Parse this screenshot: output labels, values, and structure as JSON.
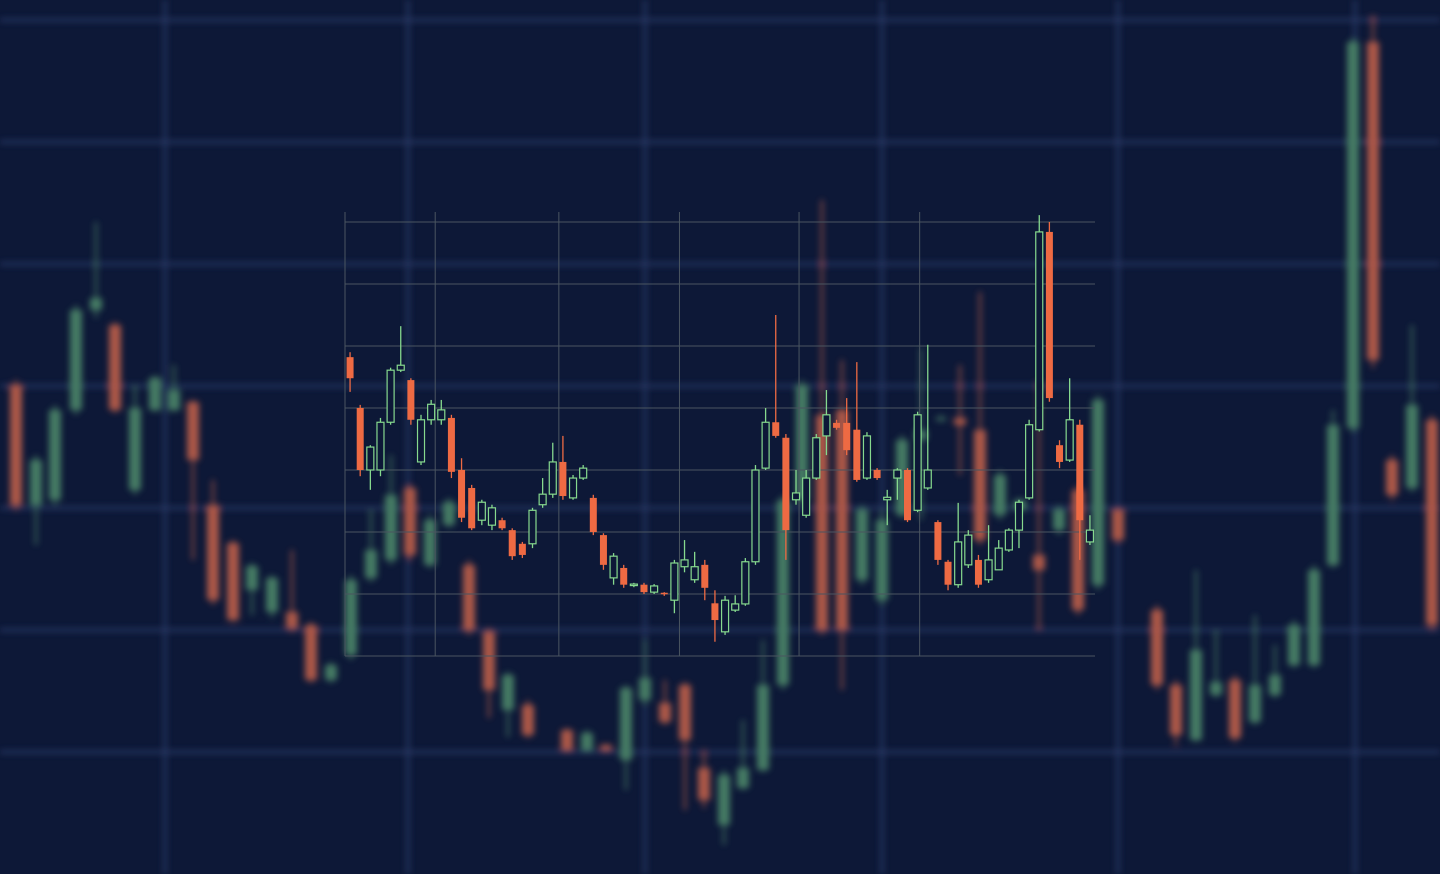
{
  "chart_data": [
    {
      "type": "candlestick",
      "x": [
        16,
        36,
        55,
        76,
        96,
        115,
        135,
        155,
        174,
        193,
        213,
        233,
        252,
        272,
        292,
        311,
        331,
        351,
        371,
        391,
        410,
        430,
        449,
        469,
        489,
        508,
        528,
        567,
        587,
        606,
        626,
        645,
        665,
        685,
        704,
        724,
        743,
        763,
        783,
        802,
        822,
        842,
        862,
        882,
        902,
        921,
        941,
        960,
        980,
        1000,
        1020,
        1039,
        1059,
        1078,
        1098,
        1118,
        1157,
        1176,
        1196,
        1216,
        1235,
        1255,
        1275,
        1294,
        1314,
        1333,
        1353,
        1373,
        1392,
        1412,
        1432
      ],
      "open": [
        489,
        369,
        374,
        464,
        564,
        549,
        384,
        464,
        464,
        472,
        369,
        331,
        284,
        262,
        262,
        249,
        194,
        219,
        296,
        314,
        386,
        309,
        349,
        309,
        242,
        164,
        169,
        144,
        124,
        129,
        114,
        174,
        171,
        189,
        106,
        49,
        86,
        104,
        189,
        374,
        459,
        464,
        294,
        274,
        359,
        434,
        454,
        456,
        444,
        359,
        364,
        319,
        344,
        384,
        289,
        364,
        264,
        189,
        134,
        179,
        194,
        152,
        179,
        209,
        209,
        309,
        446,
        832,
        414,
        386,
        454
      ],
      "high": [
        494,
        419,
        469,
        569,
        652,
        552,
        489,
        499,
        509,
        474,
        394,
        334,
        311,
        299,
        324,
        252,
        212,
        299,
        364,
        419,
        389,
        359,
        376,
        314,
        246,
        202,
        174,
        146,
        144,
        130,
        189,
        234,
        194,
        192,
        124,
        104,
        154,
        234,
        379,
        494,
        674,
        514,
        369,
        364,
        439,
        526,
        459,
        509,
        582,
        404,
        376,
        494,
        369,
        389,
        479,
        366,
        269,
        194,
        304,
        244,
        199,
        259,
        229,
        254,
        309,
        464,
        836,
        859,
        419,
        549,
        459
      ],
      "low": [
        364,
        329,
        369,
        459,
        556,
        461,
        379,
        462,
        462,
        314,
        269,
        252,
        259,
        256,
        242,
        191,
        191,
        214,
        292,
        309,
        314,
        306,
        346,
        239,
        156,
        137,
        136,
        122,
        122,
        122,
        84,
        169,
        149,
        64,
        66,
        29,
        84,
        102,
        184,
        369,
        239,
        184,
        289,
        269,
        356,
        354,
        452,
        399,
        329,
        354,
        362,
        244,
        339,
        259,
        284,
        332,
        184,
        129,
        132,
        176,
        132,
        149,
        176,
        206,
        206,
        306,
        442,
        506,
        374,
        382,
        244
      ],
      "close": [
        369,
        414,
        464,
        564,
        576,
        464,
        466,
        496,
        484,
        414,
        274,
        254,
        308,
        296,
        246,
        194,
        209,
        294,
        324,
        379,
        319,
        354,
        372,
        244,
        184,
        199,
        139,
        124,
        141,
        124,
        186,
        196,
        152,
        134,
        74,
        99,
        106,
        189,
        374,
        489,
        244,
        244,
        364,
        354,
        434,
        444,
        456,
        449,
        334,
        399,
        374,
        304,
        364,
        264,
        474,
        334,
        189,
        139,
        224,
        192,
        136,
        189,
        199,
        249,
        304,
        449,
        832,
        514,
        379,
        469,
        249
      ],
      "xlim": [
        0,
        1440
      ],
      "ylim": [
        0,
        874
      ],
      "xticks": [
        165,
        408,
        645,
        882,
        1118,
        1355
      ],
      "yticks": [
        122,
        244,
        366,
        488,
        610,
        732,
        854
      ],
      "grid": true,
      "up_color": "#4f8c6c",
      "down_color": "#c8644c",
      "grid_color": "#2f4170"
    },
    {
      "type": "candlestick",
      "x": [
        1,
        2,
        3,
        4,
        5,
        6,
        7,
        8,
        9,
        10,
        11,
        12,
        13,
        14,
        15,
        16,
        17,
        18,
        19,
        20,
        21,
        22,
        23,
        24,
        25,
        26,
        27,
        28,
        29,
        30,
        31,
        32,
        33,
        34,
        35,
        36,
        37,
        38,
        39,
        40,
        41,
        42,
        43,
        44,
        45,
        46,
        47,
        48,
        49,
        50,
        51,
        52,
        53,
        54,
        55,
        56,
        57,
        58,
        59,
        60,
        61,
        62,
        63,
        64,
        65,
        66,
        67,
        68,
        69,
        70,
        71,
        72,
        73,
        74
      ],
      "open": [
        4.82,
        4.0,
        3.0,
        3.0,
        3.77,
        4.61,
        4.45,
        3.13,
        3.81,
        3.81,
        3.84,
        3.0,
        2.71,
        2.19,
        2.11,
        2.19,
        2.03,
        1.81,
        1.81,
        2.44,
        2.61,
        3.13,
        2.55,
        2.87,
        2.55,
        1.95,
        1.26,
        1.42,
        1.15,
        1.15,
        1.03,
        1.02,
        0.9,
        1.44,
        1.23,
        1.47,
        0.85,
        0.39,
        0.74,
        0.84,
        1.52,
        3.03,
        3.77,
        3.52,
        2.52,
        2.27,
        2.87,
        3.55,
        3.76,
        3.76,
        3.65,
        2.87,
        3.0,
        2.52,
        2.87,
        3.0,
        2.35,
        2.71,
        2.16,
        1.52,
        1.15,
        1.47,
        1.55,
        1.23,
        1.39,
        1.71,
        2.03,
        2.55,
        3.65,
        6.84,
        3.4,
        3.16,
        3.73,
        1.84
      ],
      "high": [
        4.9,
        4.05,
        3.4,
        3.84,
        4.65,
        5.32,
        4.48,
        3.89,
        4.13,
        4.13,
        3.89,
        3.19,
        2.76,
        2.52,
        2.44,
        2.23,
        2.06,
        1.84,
        2.39,
        2.87,
        3.44,
        3.55,
        2.92,
        3.08,
        2.6,
        1.98,
        1.66,
        1.47,
        1.18,
        1.18,
        1.16,
        1.03,
        1.55,
        1.87,
        1.68,
        1.55,
        1.06,
        0.97,
        0.98,
        1.58,
        3.08,
        4.0,
        5.5,
        3.58,
        3.0,
        3.0,
        3.58,
        4.29,
        3.81,
        4.16,
        4.74,
        3.61,
        3.03,
        2.68,
        3.03,
        3.03,
        3.94,
        5.02,
        2.19,
        1.55,
        2.47,
        2.03,
        1.63,
        2.11,
        1.87,
        2.06,
        2.52,
        3.81,
        7.11,
        7.0,
        3.48,
        4.48,
        3.81,
        2.27
      ],
      "low": [
        4.26,
        2.9,
        2.68,
        2.9,
        3.73,
        4.58,
        3.73,
        3.08,
        3.73,
        3.73,
        2.87,
        2.16,
        2.03,
        2.11,
        2.03,
        2.03,
        1.55,
        1.58,
        1.74,
        2.39,
        2.55,
        2.52,
        2.52,
        2.84,
        1.95,
        1.39,
        1.15,
        1.1,
        1.11,
        1.0,
        1.0,
        0.97,
        0.69,
        1.35,
        1.18,
        0.9,
        0.23,
        0.34,
        0.71,
        0.81,
        1.47,
        3.0,
        3.52,
        1.55,
        2.44,
        2.23,
        2.84,
        3.24,
        3.65,
        3.24,
        2.81,
        2.84,
        2.84,
        2.11,
        2.52,
        2.16,
        2.32,
        2.68,
        1.47,
        1.06,
        1.1,
        1.42,
        1.1,
        1.18,
        1.39,
        1.68,
        1.74,
        2.52,
        3.62,
        4.1,
        3.03,
        3.13,
        1.55,
        1.79
      ],
      "close": [
        4.48,
        3.0,
        3.37,
        3.77,
        4.61,
        4.69,
        3.81,
        3.81,
        4.06,
        3.97,
        2.97,
        2.23,
        2.06,
        2.48,
        2.39,
        2.06,
        1.61,
        1.63,
        2.35,
        2.61,
        3.13,
        2.58,
        2.87,
        3.03,
        2.0,
        1.47,
        1.61,
        1.15,
        1.16,
        1.03,
        1.13,
        1.0,
        1.5,
        1.55,
        1.44,
        1.1,
        0.58,
        0.9,
        0.84,
        1.52,
        3.0,
        3.77,
        3.55,
        2.03,
        2.63,
        2.87,
        3.52,
        3.89,
        3.68,
        3.32,
        2.84,
        3.55,
        2.87,
        2.56,
        3.0,
        2.19,
        3.89,
        3.0,
        1.55,
        1.15,
        1.84,
        1.95,
        1.15,
        1.55,
        1.74,
        2.03,
        2.48,
        3.73,
        6.84,
        4.16,
        3.13,
        3.81,
        2.19,
        2.03
      ],
      "xlim": [
        0.5,
        74.5
      ],
      "ylim": [
        0,
        7.2
      ],
      "xticks": [
        9.4,
        21.6,
        33.5,
        45.3,
        57.2
      ],
      "yticks": [
        0,
        1,
        2,
        3,
        4,
        5,
        6,
        7
      ],
      "grid": true,
      "up_color": "#86d98e",
      "down_color": "#ee6a43",
      "grid_color": "#4a5560"
    }
  ]
}
